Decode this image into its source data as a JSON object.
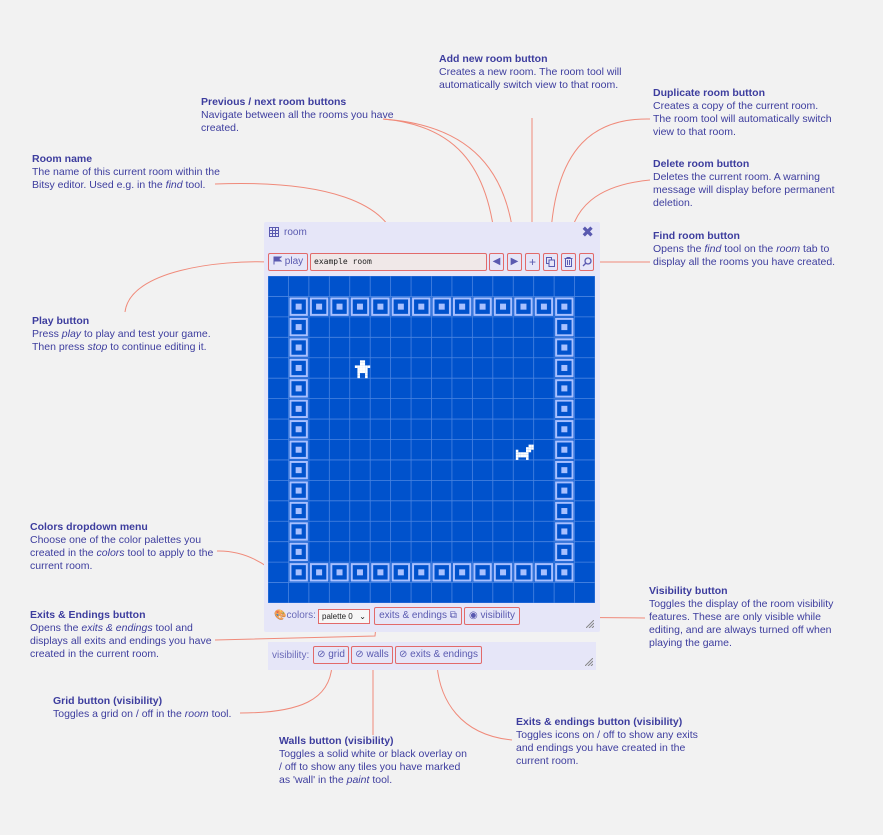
{
  "annotations": {
    "prev_next": {
      "title": "Previous / next room buttons",
      "desc": "Navigate between all the rooms you have created."
    },
    "add_room": {
      "title": "Add new room button",
      "desc": "Creates a new room. The room tool will automatically switch view to that room."
    },
    "duplicate": {
      "title": "Duplicate room button",
      "desc": "Creates a copy of the current room. The room tool will automatically switch view to that room."
    },
    "delete": {
      "title": "Delete room button",
      "desc": "Deletes the current room. A warning message will display before permanent deletion."
    },
    "find": {
      "title": "Find room button",
      "desc_a": "Opens the ",
      "desc_find": "find",
      "desc_b": " tool on the ",
      "desc_room": "room",
      "desc_c": " tab to display all the rooms you have created."
    },
    "room_name": {
      "title": "Room name",
      "desc_a": "The name of this current room within the Bitsy editor. Used e.g. in the ",
      "desc_find": "find",
      "desc_b": " tool."
    },
    "play": {
      "title": "Play button",
      "desc_a": "Press ",
      "desc_play": "play",
      "desc_b": " to play and test your game. Then press ",
      "desc_stop": "stop",
      "desc_c": " to continue editing it."
    },
    "colors": {
      "title": "Colors dropdown menu",
      "desc_a": "Choose one of the color palettes you created in the ",
      "desc_colors": "colors",
      "desc_b": " tool to apply to the current room."
    },
    "exits": {
      "title": "Exits & Endings button",
      "desc_a": "Opens the ",
      "desc_tool": "exits & endings",
      "desc_b": " tool and displays all exits and endings you have created in the current room."
    },
    "visibility": {
      "title": "Visibility button",
      "desc": "Toggles the display of the room visibility features. These are only visible while editing, and are always turned off when playing the game."
    },
    "grid": {
      "title": "Grid button (visibility)",
      "desc_a": "Toggles a grid on / off in the ",
      "desc_room": "room",
      "desc_b": " tool."
    },
    "walls": {
      "title": "Walls button (visibility)",
      "desc_a": "Toggles a solid white or black overlay on / off to show any tiles you have marked as 'wall' in the ",
      "desc_paint": "paint",
      "desc_b": " tool."
    },
    "exits_vis": {
      "title": "Exits & endings button (visibility)",
      "desc": "Toggles icons on / off to show any exits and endings you have created in the current room."
    }
  },
  "panel": {
    "title": "room",
    "play_label": "play",
    "room_name": "example room",
    "colors_label": "colors:",
    "palette_selected": "palette 0",
    "exits_label": "exits & endings",
    "visibility_label": "visibility",
    "vis_prefix": "visibility:",
    "grid_label": "grid",
    "walls_label": "walls",
    "vis_exits_label": "exits & endings"
  },
  "colors": {
    "room_bg": "#0052cc",
    "tile": "#a8c0ff",
    "accent": "#e26a6a",
    "panel": "#e6e6f8",
    "text": "#3d3d9e"
  },
  "room": {
    "size": 16,
    "wall_rows": [
      1,
      14
    ],
    "wall_cols": [
      1,
      14
    ],
    "avatar": [
      4,
      4
    ],
    "cat": [
      8,
      12
    ]
  }
}
